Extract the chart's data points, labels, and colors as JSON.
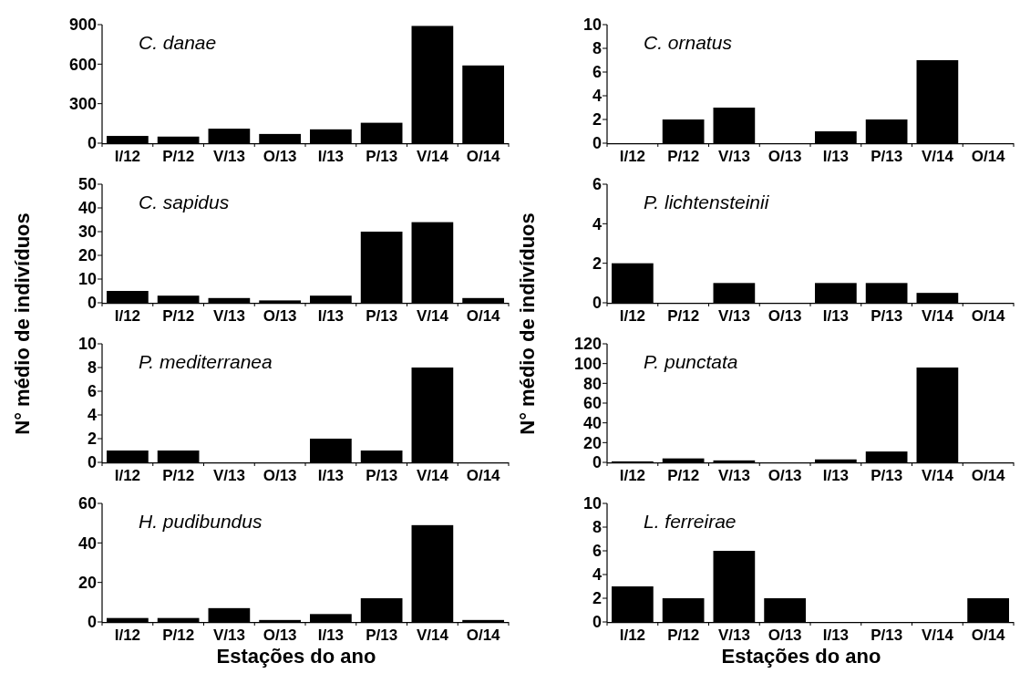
{
  "chart_data": [
    {
      "type": "bar",
      "title": "C. danae",
      "ylabel": "N° médio de indivíduos",
      "categories": [
        "I/12",
        "P/12",
        "V/13",
        "O/13",
        "I/13",
        "P/13",
        "V/14",
        "O/14"
      ],
      "values": [
        55,
        50,
        110,
        70,
        105,
        155,
        890,
        590
      ],
      "color": "#000000",
      "ylim": [
        0,
        900
      ],
      "yticks": [
        0,
        300,
        600,
        900
      ]
    },
    {
      "type": "bar",
      "title": "C. sapidus",
      "categories": [
        "I/12",
        "P/12",
        "V/13",
        "O/13",
        "I/13",
        "P/13",
        "V/14",
        "O/14"
      ],
      "values": [
        5,
        3,
        2,
        1,
        3,
        30,
        34,
        2
      ],
      "color": "#000000",
      "ylim": [
        0,
        50
      ],
      "yticks": [
        0,
        10,
        20,
        30,
        40,
        50
      ]
    },
    {
      "type": "bar",
      "title": "P. mediterranea",
      "categories": [
        "I/12",
        "P/12",
        "V/13",
        "O/13",
        "I/13",
        "P/13",
        "V/14",
        "O/14"
      ],
      "values": [
        1,
        1,
        0,
        0,
        2,
        1,
        8,
        0
      ],
      "color": "#000000",
      "ylim": [
        0,
        10
      ],
      "yticks": [
        0,
        2,
        4,
        6,
        8,
        10
      ]
    },
    {
      "type": "bar",
      "title": "H. pudibundus",
      "xlabel": "Estações do ano",
      "categories": [
        "I/12",
        "P/12",
        "V/13",
        "O/13",
        "I/13",
        "P/13",
        "V/14",
        "O/14"
      ],
      "values": [
        2,
        2,
        7,
        1,
        4,
        12,
        49,
        1
      ],
      "color": "#000000",
      "ylim": [
        0,
        60
      ],
      "yticks": [
        0,
        20,
        40,
        60
      ]
    },
    {
      "type": "bar",
      "title": "C. ornatus",
      "ylabel": "N° médio de indivíduos",
      "categories": [
        "I/12",
        "P/12",
        "V/13",
        "O/13",
        "I/13",
        "P/13",
        "V/14",
        "O/14"
      ],
      "values": [
        0,
        2,
        3,
        0,
        1,
        2,
        7,
        0
      ],
      "color": "#000000",
      "ylim": [
        0,
        10
      ],
      "yticks": [
        0,
        2,
        4,
        6,
        8,
        10
      ]
    },
    {
      "type": "bar",
      "title": "P. lichtensteinii",
      "categories": [
        "I/12",
        "P/12",
        "V/13",
        "O/13",
        "I/13",
        "P/13",
        "V/14",
        "O/14"
      ],
      "values": [
        2,
        0,
        1,
        0,
        1,
        1,
        0.5,
        0
      ],
      "color": "#000000",
      "ylim": [
        0,
        6
      ],
      "yticks": [
        0,
        2,
        4,
        6
      ]
    },
    {
      "type": "bar",
      "title": "P. punctata",
      "categories": [
        "I/12",
        "P/12",
        "V/13",
        "O/13",
        "I/13",
        "P/13",
        "V/14",
        "O/14"
      ],
      "values": [
        1,
        4,
        2,
        0,
        3,
        11,
        96,
        0
      ],
      "color": "#000000",
      "ylim": [
        0,
        120
      ],
      "yticks": [
        0,
        20,
        40,
        60,
        80,
        100,
        120
      ]
    },
    {
      "type": "bar",
      "title": "L. ferreirae",
      "xlabel": "Estações do ano",
      "categories": [
        "I/12",
        "P/12",
        "V/13",
        "O/13",
        "I/13",
        "P/13",
        "V/14",
        "O/14"
      ],
      "values": [
        3,
        2,
        6,
        2,
        0,
        0,
        0,
        2
      ],
      "color": "#000000",
      "ylim": [
        0,
        10
      ],
      "yticks": [
        0,
        2,
        4,
        6,
        8,
        10
      ]
    }
  ]
}
